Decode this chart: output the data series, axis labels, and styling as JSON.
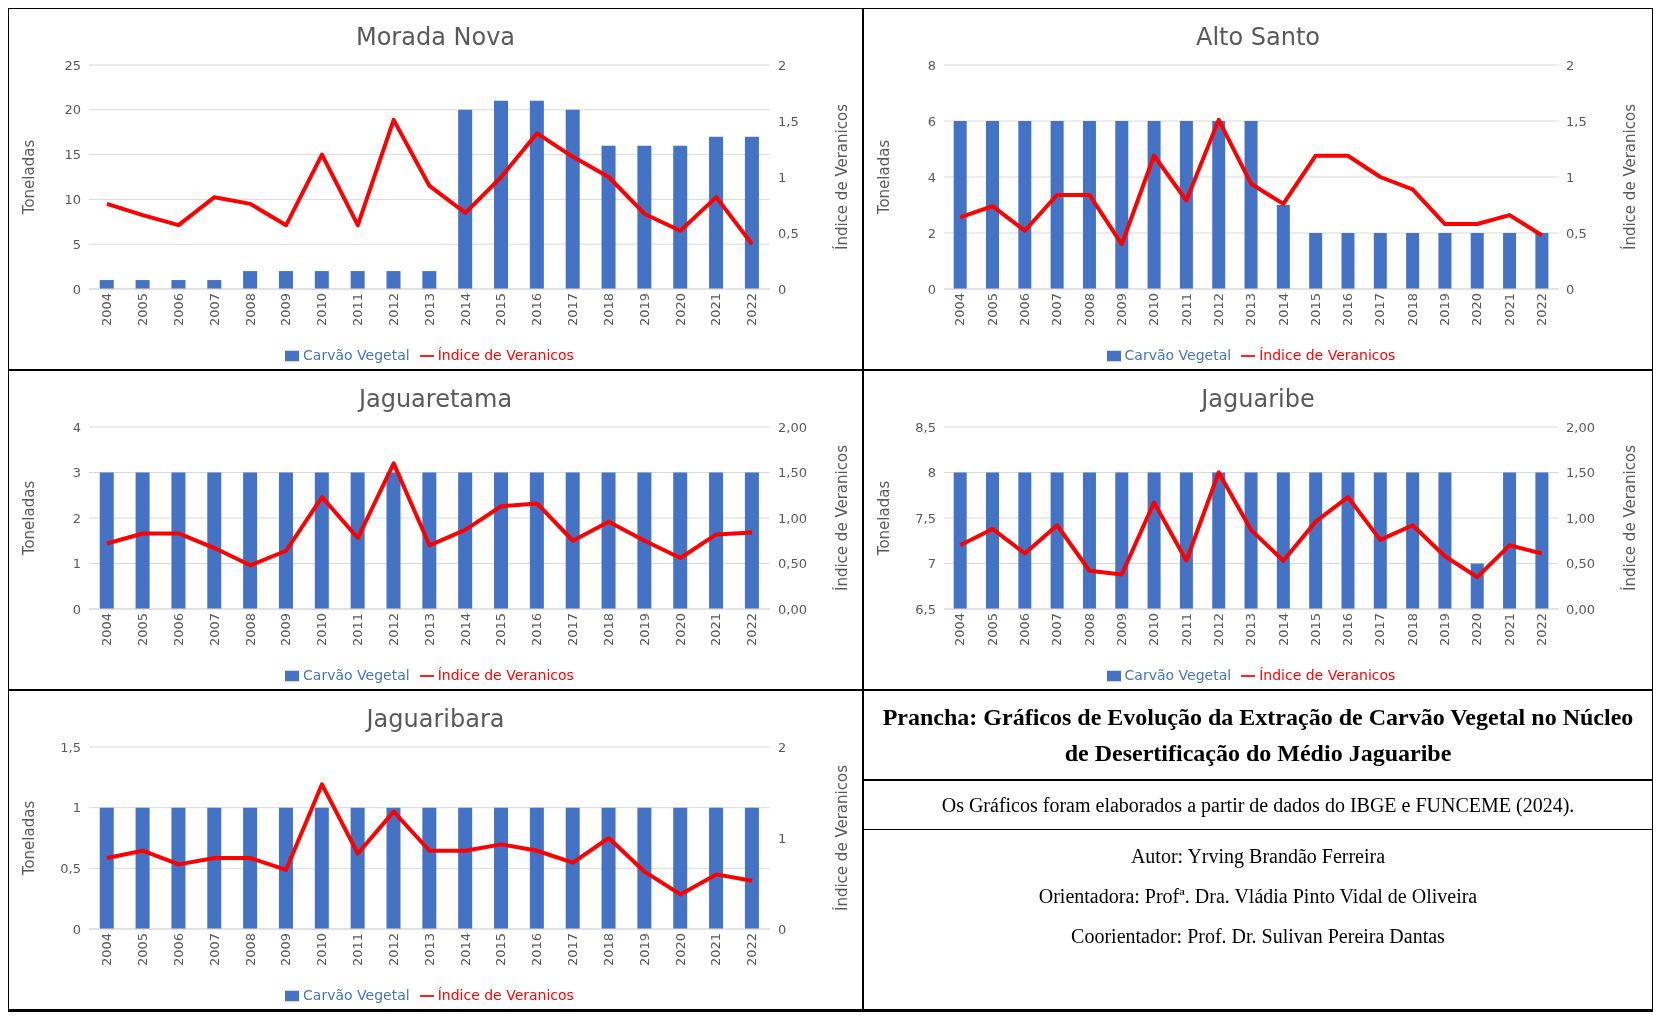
{
  "chart_data": [
    {
      "type": "bar",
      "title": "Morada Nova",
      "ylabel": "Toneladas",
      "y2label": "Índice de Veranicos",
      "categories": [
        "2004",
        "2005",
        "2006",
        "2007",
        "2008",
        "2009",
        "2010",
        "2011",
        "2012",
        "2013",
        "2014",
        "2015",
        "2016",
        "2017",
        "2018",
        "2019",
        "2020",
        "2021",
        "2022"
      ],
      "series": [
        {
          "name": "Carvão Vegetal",
          "color": "#4472c4",
          "values": [
            1,
            1,
            1,
            1,
            2,
            2,
            2,
            2,
            2,
            2,
            20,
            21,
            21,
            20,
            16,
            16,
            16,
            17,
            17
          ]
        },
        {
          "name": "Índice de Veranicos",
          "type": "line",
          "axis": "y2",
          "color": "#ff0000",
          "values": [
            0.76,
            0.66,
            0.57,
            0.82,
            0.76,
            0.57,
            1.2,
            0.57,
            1.51,
            0.92,
            0.68,
            1.0,
            1.39,
            1.18,
            1.0,
            0.67,
            0.52,
            0.82,
            0.4
          ]
        }
      ],
      "ylim": [
        0,
        25
      ],
      "yticks": [
        0,
        5,
        10,
        15,
        20,
        25
      ],
      "y2lim": [
        0,
        2
      ],
      "y2ticks": [
        0,
        {
          "value": 0.5,
          "label": "0,5"
        },
        1,
        {
          "value": 1.5,
          "label": "1,5"
        },
        2
      ],
      "grid": "y",
      "legend": "bottom",
      "marker": "none"
    },
    {
      "type": "bar",
      "title": "Alto Santo",
      "ylabel": "Toneladas",
      "y2label": "Índice de Veranicos",
      "categories": [
        "2004",
        "2005",
        "2006",
        "2007",
        "2008",
        "2009",
        "2010",
        "2011",
        "2012",
        "2013",
        "2014",
        "2015",
        "2016",
        "2017",
        "2018",
        "2019",
        "2020",
        "2021",
        "2022"
      ],
      "series": [
        {
          "name": "Carvão Vegetal",
          "color": "#4472c4",
          "values": [
            6,
            6,
            6,
            6,
            6,
            6,
            6,
            6,
            6,
            6,
            3,
            2,
            2,
            2,
            2,
            2,
            2,
            2,
            2
          ]
        },
        {
          "name": "Índice de Veranicos",
          "type": "line",
          "axis": "y2",
          "color": "#ff0000",
          "values": [
            0.64,
            0.74,
            0.52,
            0.84,
            0.84,
            0.4,
            1.19,
            0.79,
            1.51,
            0.94,
            0.76,
            1.19,
            1.19,
            1.0,
            0.89,
            0.58,
            0.58,
            0.66,
            0.48
          ]
        }
      ],
      "ylim": [
        0,
        8
      ],
      "yticks": [
        0,
        2,
        4,
        6,
        8
      ],
      "y2lim": [
        0,
        2
      ],
      "y2ticks": [
        0,
        {
          "value": 0.5,
          "label": "0,5"
        },
        1,
        {
          "value": 1.5,
          "label": "1,5"
        },
        2
      ],
      "grid": "y",
      "legend": "bottom",
      "marker": "none"
    },
    {
      "type": "bar",
      "title": "Jaguaretama",
      "ylabel": "Toneladas",
      "y2label": "Índice de Veranicos",
      "categories": [
        "2004",
        "2005",
        "2006",
        "2007",
        "2008",
        "2009",
        "2010",
        "2011",
        "2012",
        "2013",
        "2014",
        "2015",
        "2016",
        "2017",
        "2018",
        "2019",
        "2020",
        "2021",
        "2022"
      ],
      "series": [
        {
          "name": "Carvão Vegetal",
          "color": "#4472c4",
          "values": [
            3,
            3,
            3,
            3,
            3,
            3,
            3,
            3,
            3,
            3,
            3,
            3,
            3,
            3,
            3,
            3,
            3,
            3,
            3
          ]
        },
        {
          "name": "Índice de Veranicos",
          "type": "line",
          "axis": "y2",
          "color": "#ff0000",
          "values": [
            0.72,
            0.83,
            0.83,
            0.67,
            0.48,
            0.64,
            1.23,
            0.78,
            1.6,
            0.7,
            0.87,
            1.13,
            1.16,
            0.75,
            0.96,
            0.75,
            0.56,
            0.82,
            0.84
          ]
        }
      ],
      "ylim": [
        0,
        4
      ],
      "yticks": [
        0,
        1,
        2,
        3,
        4
      ],
      "y2lim": [
        0,
        2
      ],
      "y2ticks": [
        {
          "value": 0,
          "label": "0,00"
        },
        {
          "value": 0.5,
          "label": "0,50"
        },
        {
          "value": 1,
          "label": "1,00"
        },
        {
          "value": 1.5,
          "label": "1,50"
        },
        {
          "value": 2,
          "label": "2,00"
        }
      ],
      "grid": "y",
      "legend": "bottom",
      "marker": "none"
    },
    {
      "type": "bar",
      "title": "Jaguaribe",
      "ylabel": "Toneladas",
      "y2label": "Índice de Veranicos",
      "categories": [
        "2004",
        "2005",
        "2006",
        "2007",
        "2008",
        "2009",
        "2010",
        "2011",
        "2012",
        "2013",
        "2014",
        "2015",
        "2016",
        "2017",
        "2018",
        "2019",
        "2020",
        "2021",
        "2022"
      ],
      "series": [
        {
          "name": "Carvão Vegetal",
          "color": "#4472c4",
          "values": [
            8,
            8,
            8,
            8,
            8,
            8,
            8,
            8,
            8,
            8,
            8,
            8,
            8,
            8,
            8,
            8,
            7,
            8,
            8
          ]
        },
        {
          "name": "Índice de Veranicos",
          "type": "line",
          "axis": "y2",
          "color": "#ff0000",
          "values": [
            0.7,
            0.88,
            0.61,
            0.92,
            0.42,
            0.38,
            1.17,
            0.53,
            1.5,
            0.87,
            0.53,
            0.96,
            1.23,
            0.76,
            0.92,
            0.58,
            0.35,
            0.7,
            0.61
          ]
        }
      ],
      "ylim": [
        6.5,
        8.5
      ],
      "yticks": [
        {
          "value": 6.5,
          "label": "6,5"
        },
        7,
        {
          "value": 7.5,
          "label": "7,5"
        },
        8,
        {
          "value": 8.5,
          "label": "8,5"
        }
      ],
      "y2lim": [
        0,
        2
      ],
      "y2ticks": [
        {
          "value": 0,
          "label": "0,00"
        },
        {
          "value": 0.5,
          "label": "0,50"
        },
        {
          "value": 1,
          "label": "1,00"
        },
        {
          "value": 1.5,
          "label": "1,50"
        },
        {
          "value": 2,
          "label": "2,00"
        }
      ],
      "grid": "y",
      "legend": "bottom",
      "marker": "none"
    },
    {
      "type": "bar",
      "title": "Jaguaribara",
      "ylabel": "Toneladas",
      "y2label": "Índice de Veranicos",
      "categories": [
        "2004",
        "2005",
        "2006",
        "2007",
        "2008",
        "2009",
        "2010",
        "2011",
        "2012",
        "2013",
        "2014",
        "2015",
        "2016",
        "2017",
        "2018",
        "2019",
        "2020",
        "2021",
        "2022"
      ],
      "series": [
        {
          "name": "Carvão Vegetal",
          "color": "#4472c4",
          "values": [
            1,
            1,
            1,
            1,
            1,
            1,
            1,
            1,
            1,
            1,
            1,
            1,
            1,
            1,
            1,
            1,
            1,
            1,
            1
          ]
        },
        {
          "name": "Índice de Veranicos",
          "type": "line",
          "axis": "y2",
          "color": "#ff0000",
          "values": [
            0.78,
            0.86,
            0.71,
            0.78,
            0.78,
            0.65,
            1.59,
            0.83,
            1.29,
            0.86,
            0.86,
            0.93,
            0.86,
            0.73,
            1.0,
            0.63,
            0.38,
            0.6,
            0.53
          ]
        }
      ],
      "ylim": [
        0,
        1.5
      ],
      "yticks": [
        0,
        {
          "value": 0.5,
          "label": "0,5"
        },
        1,
        {
          "value": 1.5,
          "label": "1,5"
        }
      ],
      "y2lim": [
        0,
        2
      ],
      "y2ticks": [
        0,
        1,
        2
      ],
      "grid": "y",
      "legend": "bottom",
      "marker": "none"
    },
    {
      "type": "other",
      "title": "Prancha: Gráficos de Evolução da Extração de Carvão Vegetal no Núcleo de Desertificação do Médio Jaguaribe",
      "annotations": [
        "Os Gráficos foram elaborados a partir de dados do IBGE e FUNCEME (2024).",
        "Autor: Yrving Brandão Ferreira",
        "Orientadora: Profª. Dra. Vládia Pinto Vidal de Oliveira",
        "Coorientador: Prof. Dr. Sulivan Pereira Dantas"
      ]
    }
  ]
}
